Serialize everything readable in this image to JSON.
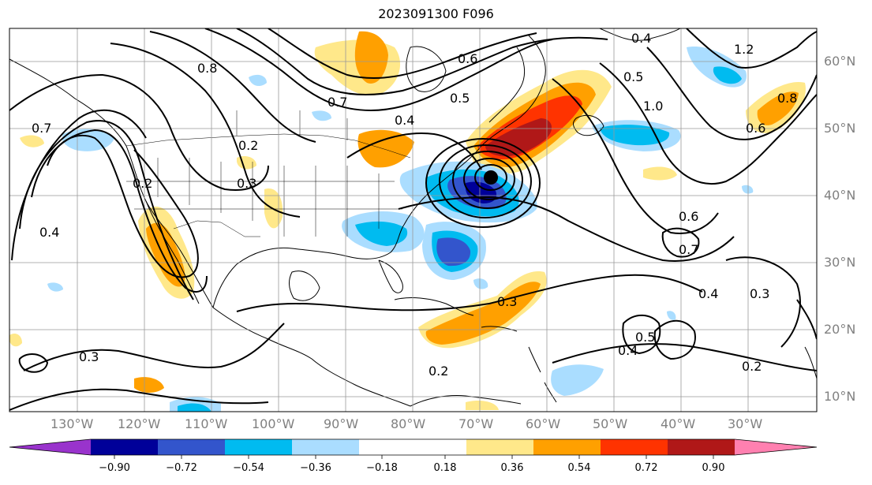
{
  "title": "2023091300 F096",
  "map": {
    "longitude_labels": [
      "130°W",
      "120°W",
      "110°W",
      "100°W",
      "90°W",
      "80°W",
      "70°W",
      "60°W",
      "50°W",
      "40°W",
      "30°W"
    ],
    "latitude_labels": [
      "60°N",
      "50°N",
      "40°N",
      "30°N",
      "20°N",
      "10°N"
    ],
    "contour_labels": [
      "0.2",
      "0.3",
      "0.4",
      "0.5",
      "0.6",
      "0.7",
      "0.8",
      "1.0",
      "1.2"
    ],
    "low_center_marker": "filled black dot",
    "coast_color": "#000000",
    "grid_color": "#999999"
  },
  "colorbar": {
    "ticks": [
      "−0.90",
      "−0.72",
      "−0.54",
      "−0.36",
      "−0.18",
      "0.18",
      "0.36",
      "0.54",
      "0.72",
      "0.90"
    ],
    "colors": [
      "#9933cc",
      "#000099",
      "#3355cc",
      "#00bbf0",
      "#aaddff",
      "#ffffff",
      "#ffe88a",
      "#ffa000",
      "#ff3300",
      "#b01818",
      "#ff80b0"
    ]
  }
}
